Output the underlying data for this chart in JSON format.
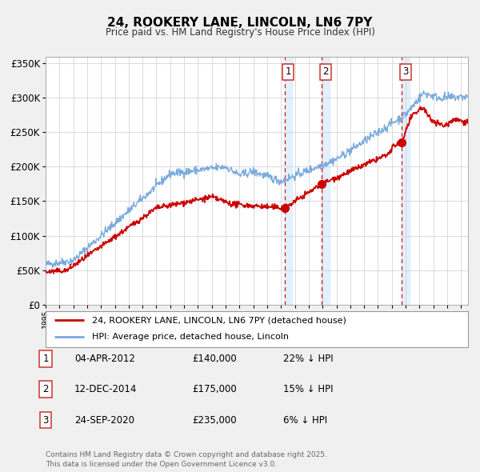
{
  "title": "24, ROOKERY LANE, LINCOLN, LN6 7PY",
  "subtitle": "Price paid vs. HM Land Registry's House Price Index (HPI)",
  "bg_color": "#f0f0f0",
  "plot_bg_color": "#ffffff",
  "red_line_color": "#cc0000",
  "blue_line_color": "#7aaadd",
  "grid_color": "#cccccc",
  "ylim": [
    0,
    360000
  ],
  "yticks": [
    0,
    50000,
    100000,
    150000,
    200000,
    250000,
    300000,
    350000
  ],
  "ytick_labels": [
    "£0",
    "£50K",
    "£100K",
    "£150K",
    "£200K",
    "£250K",
    "£300K",
    "£350K"
  ],
  "sales": [
    {
      "label": "1",
      "date_num": 2012.25,
      "price": 140000,
      "x_label": "04-APR-2012",
      "pct": "22%",
      "dir": "↓"
    },
    {
      "label": "2",
      "date_num": 2014.95,
      "price": 175000,
      "x_label": "12-DEC-2014",
      "pct": "15%",
      "dir": "↓"
    },
    {
      "label": "3",
      "date_num": 2020.73,
      "price": 235000,
      "x_label": "24-SEP-2020",
      "pct": "6%",
      "dir": "↓"
    }
  ],
  "legend_label_red": "24, ROOKERY LANE, LINCOLN, LN6 7PY (detached house)",
  "legend_label_blue": "HPI: Average price, detached house, Lincoln",
  "footnote": "Contains HM Land Registry data © Crown copyright and database right 2025.\nThis data is licensed under the Open Government Licence v3.0.",
  "xmin": 1995,
  "xmax": 2025.5,
  "shade_color": "#ddeeff",
  "vline_color": "#cc0000"
}
